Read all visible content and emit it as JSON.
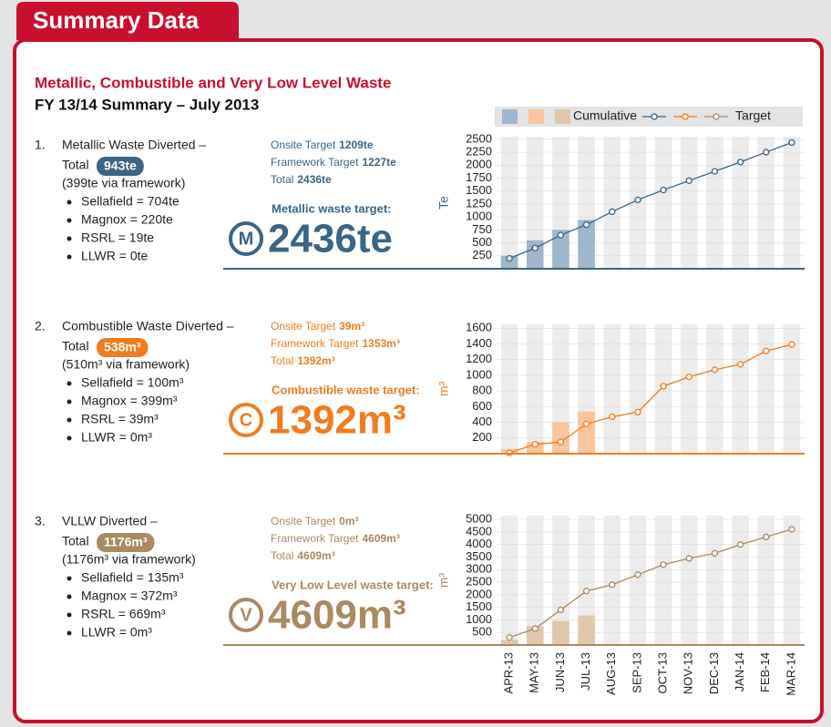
{
  "header": {
    "tab": "Summary Data",
    "title": "Metallic, Combustible and Very Low Level Waste",
    "subtitle": "FY 13/14 Summary – July 2013"
  },
  "sections": [
    {
      "number": "1.",
      "heading": "Metallic Waste Diverted –",
      "total_label": "Total",
      "total": "943te",
      "note": "(399te via framework)",
      "bullets": [
        "Sellafield = 704te",
        "Magnox = 220te",
        "RSRL = 19te",
        "LLWR = 0te"
      ],
      "targets": [
        {
          "label": "Onsite Target",
          "value": "1209te"
        },
        {
          "label": "Framework Target",
          "value": "1227te"
        },
        {
          "label": "Total",
          "value": "2436te"
        }
      ],
      "target_title": "Metallic waste target:",
      "icon": "M",
      "target_value": "2436te"
    },
    {
      "number": "2.",
      "heading": "Combustible Waste Diverted –",
      "total_label": "Total",
      "total": "538m³",
      "note": "(510m³ via framework)",
      "bullets": [
        "Sellafield = 100m³",
        "Magnox = 399m³",
        "RSRL = 39m³",
        "LLWR = 0m³"
      ],
      "targets": [
        {
          "label": "Onsite Target",
          "value": "39m³"
        },
        {
          "label": "Framework Target",
          "value": "1353m³"
        },
        {
          "label": "Total",
          "value": "1392m³"
        }
      ],
      "target_title": "Combustible waste target:",
      "icon": "C",
      "target_value": "1392m³"
    },
    {
      "number": "3.",
      "heading": "VLLW Diverted –",
      "total_label": "Total",
      "total": "1176m³",
      "note": "(1176m³ via framework)",
      "bullets": [
        "Sellafield = 135m³",
        "Magnox = 372m³",
        "RSRL = 669m³",
        "LLWR = 0m³"
      ],
      "targets": [
        {
          "label": "Onsite Target",
          "value": "0m³"
        },
        {
          "label": "Framework Target",
          "value": "4609m³"
        },
        {
          "label": "Total",
          "value": "4609m³"
        }
      ],
      "target_title": "Very Low Level waste target:",
      "icon": "V",
      "target_value": "4609m³"
    }
  ],
  "chart_data": [
    {
      "type": "combo",
      "ylabel": "Te",
      "ylim": [
        0,
        2550
      ],
      "yticks": [
        250,
        500,
        750,
        1000,
        1250,
        1500,
        1750,
        2000,
        2250,
        2500
      ],
      "series": [
        {
          "name": "Cumulative",
          "type": "bar",
          "color": "#9fb6cd",
          "values": [
            250,
            550,
            750,
            943,
            null,
            null,
            null,
            null,
            null,
            null,
            null,
            null
          ]
        },
        {
          "name": "Target",
          "type": "line",
          "color": "#3b6586",
          "values": [
            200,
            400,
            650,
            850,
            1100,
            1330,
            1520,
            1700,
            1880,
            2060,
            2250,
            2436
          ]
        }
      ]
    },
    {
      "type": "combo",
      "ylabel": "m³",
      "ylim": [
        0,
        1650
      ],
      "yticks": [
        200,
        400,
        600,
        800,
        1000,
        1200,
        1400,
        1600
      ],
      "series": [
        {
          "type": "bar",
          "color": "#f8c59c",
          "values": [
            60,
            150,
            400,
            538,
            null,
            null,
            null,
            null,
            null,
            null,
            null,
            null
          ]
        },
        {
          "type": "line",
          "color": "#ef7d1f",
          "values": [
            10,
            120,
            150,
            380,
            470,
            530,
            860,
            980,
            1070,
            1140,
            1310,
            1392
          ]
        }
      ]
    },
    {
      "type": "combo",
      "ylabel": "m³",
      "ylim": [
        0,
        5150
      ],
      "yticks": [
        500,
        1000,
        1500,
        2000,
        2500,
        3000,
        3500,
        4000,
        4500,
        5000
      ],
      "categories": [
        "APR-13",
        "MAY-13",
        "JUN-13",
        "JUL-13",
        "AUG-13",
        "SEP-13",
        "OCT-13",
        "NOV-13",
        "DEC-13",
        "JAN-14",
        "FEB-14",
        "MAR-14"
      ],
      "series": [
        {
          "type": "bar",
          "color": "#dfc7ac",
          "values": [
            200,
            750,
            950,
            1176,
            null,
            null,
            null,
            null,
            null,
            null,
            null,
            null
          ]
        },
        {
          "type": "line",
          "color": "#a98a62",
          "values": [
            300,
            650,
            1400,
            2150,
            2400,
            2800,
            3200,
            3450,
            3650,
            4000,
            4300,
            4609
          ]
        }
      ]
    }
  ]
}
